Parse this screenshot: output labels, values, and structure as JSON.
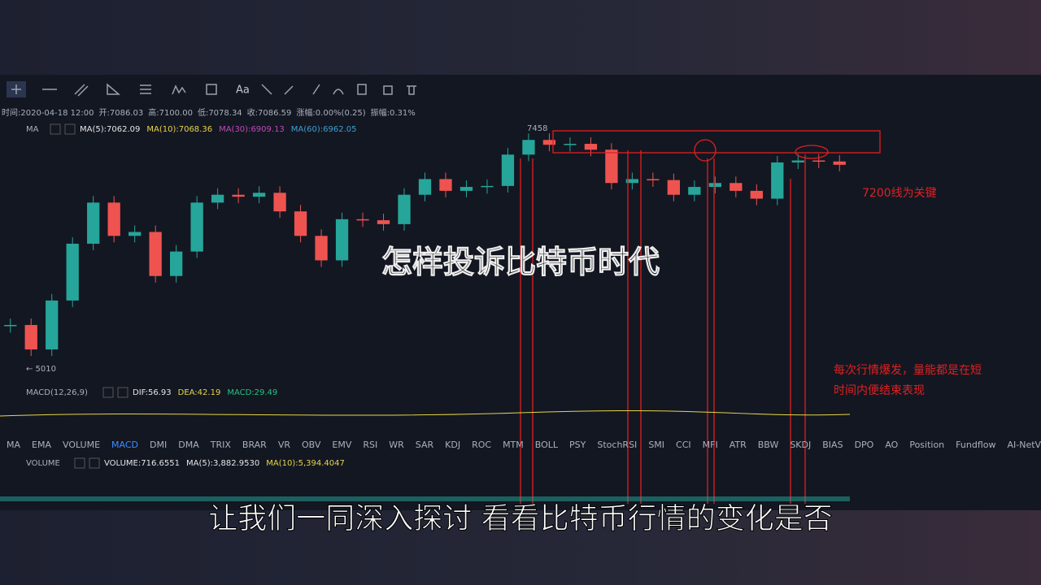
{
  "toolbar": {
    "text_tool": "Aa"
  },
  "info_bar": [
    "时间:2020-04-18 12:00",
    "开:7086.03",
    "高:7100.00",
    "低:7078.34",
    "收:7086.59",
    "涨幅:0.00%(0.25)",
    "振幅:0.31%"
  ],
  "ma_legend": {
    "label": "MA",
    "items": [
      {
        "text": "MA(5):7062.09",
        "color": "#e6e6e6"
      },
      {
        "text": "MA(10):7068.36",
        "color": "#e8d44a"
      },
      {
        "text": "MA(30):6909.13",
        "color": "#c04bb8"
      },
      {
        "text": "MA(60):6962.05",
        "color": "#3f9fd0"
      }
    ]
  },
  "price_chart": {
    "high_label": "7458",
    "low_label": "← 5010",
    "ylim": [
      5010,
      7458
    ],
    "up_color": "#26a69a",
    "down_color": "#ef5350",
    "closes": [
      5450,
      5200,
      5700,
      6280,
      6700,
      6360,
      6400,
      5950,
      6200,
      6700,
      6780,
      6760,
      6800,
      6610,
      6360,
      6110,
      6530,
      6520,
      6480,
      6780,
      6940,
      6820,
      6860,
      6870,
      7190,
      7340,
      7290,
      7300,
      7240,
      6900,
      6940,
      6930,
      6780,
      6860,
      6900,
      6820,
      6740,
      7110,
      7130,
      7120,
      7086
    ]
  },
  "annotations": {
    "key_level": "7200线为关键",
    "note": [
      "每次行情爆发，量能都是在短",
      "时间内便结束表现"
    ]
  },
  "macd_legend": {
    "label": "MACD(12,26,9)",
    "items": [
      {
        "text": "DIF:56.93",
        "color": "#e6e6e6"
      },
      {
        "text": "DEA:42.19",
        "color": "#e8d44a"
      },
      {
        "text": "MACD:29.49",
        "color": "#26c281"
      }
    ]
  },
  "indicator_tabs": [
    "MA",
    "EMA",
    "VOLUME",
    "MACD",
    "DMI",
    "DMA",
    "TRIX",
    "BRAR",
    "VR",
    "OBV",
    "EMV",
    "RSI",
    "WR",
    "SAR",
    "KDJ",
    "ROC",
    "MTM",
    "BOLL",
    "PSY",
    "StochRSI",
    "SMI",
    "CCI",
    "MFI",
    "ATR",
    "BBW",
    "SKDJ",
    "BIAS",
    "DPO",
    "AO",
    "Position",
    "Fundflow",
    "AI-NetVOL"
  ],
  "active_tab": "MACD",
  "volume_legend": {
    "label": "VOLUME",
    "items": [
      {
        "text": "VOLUME:716.6551",
        "color": "#e6e6e6"
      },
      {
        "text": "MA(5):3,882.9530",
        "color": "#e6e6e6"
      },
      {
        "text": "MA(10):5,394.4047",
        "color": "#e8d44a"
      }
    ]
  },
  "overlay_title": "怎样投诉比特币时代",
  "subtitle": "让我们一同深入探讨 看看比特币行情的变化是否"
}
